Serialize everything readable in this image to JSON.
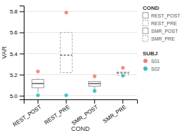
{
  "chart_data": {
    "type": "box",
    "x_label": "COND",
    "y_label": "VAR",
    "categories": [
      "REST_POST",
      "REST_PRE",
      "SMR_POST",
      "SMR_PRE"
    ],
    "boxes": [
      {
        "q1": 5.075,
        "median": 5.115,
        "q3": 5.155,
        "whislo": 5.03,
        "whishi": 5.165,
        "line_style": "solid",
        "color": "#999999"
      },
      {
        "q1": 5.22,
        "median": 5.385,
        "q3": 5.6,
        "whislo": 5.22,
        "whishi": 5.6,
        "line_style": "dashed",
        "color": "#aaaaaa"
      },
      {
        "q1": 5.09,
        "median": 5.115,
        "q3": 5.135,
        "whislo": 5.045,
        "whishi": 5.135,
        "line_style": "solid",
        "color": "#999999"
      },
      {
        "q1": 5.195,
        "median": 5.215,
        "q3": 5.225,
        "whislo": 5.195,
        "whishi": 5.225,
        "line_style": "dashed",
        "color": "#aaaaaa"
      }
    ],
    "series": [
      {
        "name": "S01",
        "type": "scatter",
        "marker": "circle",
        "color": "#f08070",
        "values": [
          5.23,
          5.79,
          5.185,
          5.265
        ]
      },
      {
        "name": "S02",
        "type": "scatter",
        "marker": "circle",
        "color": "#30bfbf",
        "values": [
          5.005,
          5.005,
          5.045,
          5.19
        ]
      }
    ],
    "ylim": [
      4.965,
      5.855
    ],
    "yticks": [
      {
        "value": 5.0,
        "label": "5.0"
      },
      5.2,
      5.4,
      5.6,
      5.8
    ],
    "grid": true,
    "legend": "right",
    "legend_titles": [
      "COND",
      "SUBJ"
    ]
  }
}
